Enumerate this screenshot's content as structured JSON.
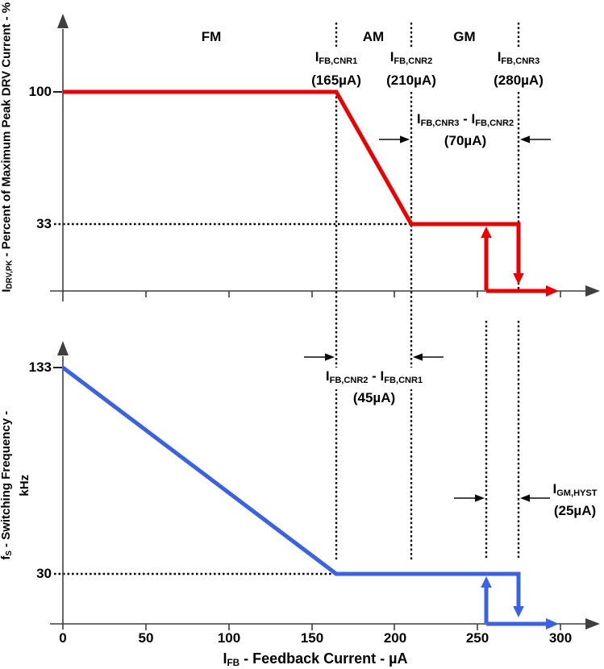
{
  "colors": {
    "red": "#EE0000",
    "blue": "#3A62E8",
    "axis": "#3F3F3F",
    "guide": "#0A0A0A"
  },
  "chart_data": [
    {
      "type": "line",
      "name": "peak-drv-current-vs-feedback-current",
      "ylabel": {
        "prefix": "I",
        "sub": "DRV,PK",
        "rest": " - Percent of Maximum Peak DRV Current - %"
      },
      "yticks": [
        {
          "label": "100",
          "value": 100
        },
        {
          "label": "33",
          "value": 33
        }
      ],
      "xlim_uA": [
        0,
        320
      ],
      "regions": [
        {
          "label": "FM"
        },
        {
          "label": "AM"
        },
        {
          "label": "GM"
        }
      ],
      "series": [
        {
          "name": "IDRV_PK_percent",
          "color": "#EE0000",
          "points": [
            [
              0,
              100
            ],
            [
              165,
              100
            ],
            [
              210,
              33
            ],
            [
              280,
              33
            ]
          ]
        }
      ],
      "hysteresis": {
        "up_uA": 255,
        "down_uA": 280,
        "low_value": 0
      },
      "markers": [
        {
          "label": {
            "prefix": "I",
            "sub": "FB,CNR1"
          },
          "value_label": "(165µA)",
          "x_uA": 165
        },
        {
          "label": {
            "prefix": "I",
            "sub": "FB,CNR2"
          },
          "value_label": "(210µA)",
          "x_uA": 210
        },
        {
          "label": {
            "prefix": "I",
            "sub": "FB,CNR3"
          },
          "value_label": "(280µA)",
          "x_uA": 280
        }
      ],
      "annotation": {
        "line1": {
          "p1": "I",
          "s1": "FB,CNR3",
          "mid": " - I",
          "s2": "FB,CNR2"
        },
        "line2": "(70µA)",
        "from_uA": 210,
        "to_uA": 280
      }
    },
    {
      "type": "line",
      "name": "switching-frequency-vs-feedback-current",
      "ylabel": {
        "line1": {
          "prefix": "f",
          "sub": "S",
          "rest": " - Switching Frequency -"
        },
        "line2": "kHz"
      },
      "yticks": [
        {
          "label": "133",
          "value": 133
        },
        {
          "label": "30",
          "value": 30
        }
      ],
      "xticks": [
        {
          "label": "0",
          "value": 0
        },
        {
          "label": "50",
          "value": 50
        },
        {
          "label": "100",
          "value": 100
        },
        {
          "label": "150",
          "value": 150
        },
        {
          "label": "200",
          "value": 200
        },
        {
          "label": "250",
          "value": 250
        },
        {
          "label": "300",
          "value": 300
        }
      ],
      "xlabel": {
        "prefix": "I",
        "sub": "FB",
        "rest": " - Feedback Current - µA"
      },
      "series": [
        {
          "name": "fs_kHz",
          "color": "#3A62E8",
          "points": [
            [
              0,
              133
            ],
            [
              165,
              30
            ],
            [
              280,
              30
            ]
          ]
        }
      ],
      "hysteresis": {
        "up_uA": 255,
        "down_uA": 280
      },
      "annotations": [
        {
          "line1": {
            "p1": "I",
            "s1": "FB,CNR2",
            "mid": " - I",
            "s2": "FB,CNR1"
          },
          "line2": "(45µA)",
          "from_uA": 165,
          "to_uA": 210
        },
        {
          "line1": {
            "prefix": "I",
            "sub": "GM,HYST"
          },
          "line2": "(25µA)",
          "from_uA": 255,
          "to_uA": 280
        }
      ]
    }
  ]
}
